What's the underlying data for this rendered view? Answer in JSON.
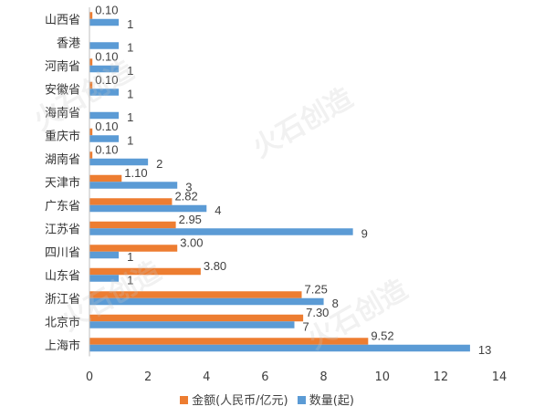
{
  "chart_data": {
    "type": "bar",
    "orientation": "horizontal",
    "categories": [
      "山西省",
      "香港",
      "河南省",
      "安徽省",
      "海南省",
      "重庆市",
      "湖南省",
      "天津市",
      "广东省",
      "江苏省",
      "四川省",
      "山东省",
      "浙江省",
      "北京市",
      "上海市"
    ],
    "series": [
      {
        "name": "金额(人民币/亿元)",
        "color": "#ED7D31",
        "values": [
          0.1,
          null,
          0.1,
          0.1,
          null,
          0.1,
          0.1,
          1.1,
          2.82,
          2.95,
          3.0,
          3.8,
          7.25,
          7.3,
          9.52
        ],
        "labels": [
          "0.10",
          "",
          "0.10",
          "0.10",
          "",
          "0.10",
          "0.10",
          "1.10",
          "2.82",
          "2.95",
          "3.00",
          "3.80",
          "7.25",
          "7.30",
          "9.52"
        ]
      },
      {
        "name": "数量(起)",
        "color": "#5B9BD5",
        "values": [
          1,
          1,
          1,
          1,
          1,
          1,
          2,
          3,
          4,
          9,
          1,
          1,
          8,
          7,
          13
        ],
        "labels": [
          "1",
          "1",
          "1",
          "1",
          "1",
          "1",
          "2",
          "3",
          "4",
          "9",
          "1",
          "1",
          "8",
          "7",
          "13"
        ]
      }
    ],
    "xlim": [
      0,
      14
    ],
    "xticks": [
      "0",
      "2",
      "4",
      "6",
      "8",
      "10",
      "12",
      "14"
    ],
    "grid": false,
    "legend_position": "bottom",
    "watermark": "火石创造"
  }
}
